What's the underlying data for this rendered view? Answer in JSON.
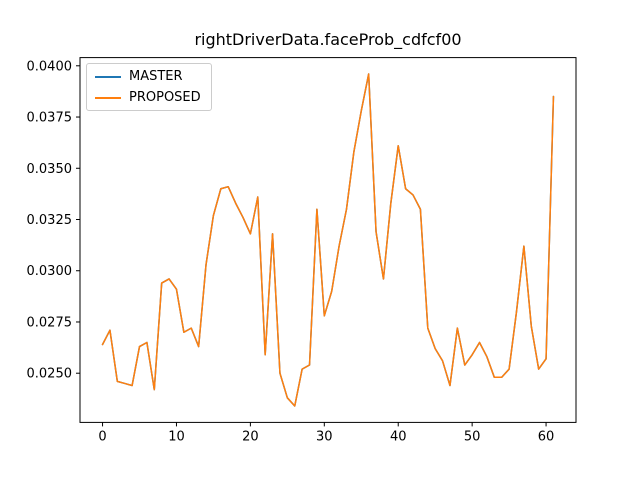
{
  "figure": {
    "background": "#ffffff"
  },
  "chart_data": {
    "type": "line",
    "title": "rightDriverData.faceProb_cdfcf00",
    "xlabel": "",
    "ylabel": "",
    "grid": false,
    "xlim": [
      -3.05,
      64.05
    ],
    "ylim": [
      0.0226,
      0.0404
    ],
    "x_ticks": [
      0,
      10,
      20,
      30,
      40,
      50,
      60
    ],
    "x_tick_labels": [
      "0",
      "10",
      "20",
      "30",
      "40",
      "50",
      "60"
    ],
    "y_ticks": [
      0.025,
      0.0275,
      0.03,
      0.0325,
      0.035,
      0.0375,
      0.04
    ],
    "y_tick_labels": [
      "0.0250",
      "0.0275",
      "0.0300",
      "0.0325",
      "0.0350",
      "0.0375",
      "0.0400"
    ],
    "legend": {
      "position": "upper-left",
      "entries": [
        {
          "label": "MASTER",
          "color": "#1f77b4"
        },
        {
          "label": "PROPOSED",
          "color": "#ff7f0e"
        }
      ]
    },
    "x": [
      0,
      1,
      2,
      3,
      4,
      5,
      6,
      7,
      8,
      9,
      10,
      11,
      12,
      13,
      14,
      15,
      16,
      17,
      18,
      19,
      20,
      21,
      22,
      23,
      24,
      25,
      26,
      27,
      28,
      29,
      30,
      31,
      32,
      33,
      34,
      35,
      36,
      37,
      38,
      39,
      40,
      41,
      42,
      43,
      44,
      45,
      46,
      47,
      48,
      49,
      50,
      51,
      52,
      53,
      54,
      55,
      56,
      57,
      58,
      59,
      60,
      61
    ],
    "series": [
      {
        "name": "MASTER",
        "color": "#1f77b4",
        "values": [
          0.0264,
          0.0271,
          0.0246,
          0.0245,
          0.0244,
          0.0263,
          0.0265,
          0.0242,
          0.0294,
          0.0296,
          0.0291,
          0.027,
          0.0272,
          0.0263,
          0.0303,
          0.0327,
          0.034,
          0.0341,
          0.0333,
          0.0326,
          0.0318,
          0.0336,
          0.0259,
          0.0318,
          0.025,
          0.0238,
          0.0234,
          0.0252,
          0.0254,
          0.033,
          0.0278,
          0.029,
          0.0312,
          0.033,
          0.0358,
          0.0378,
          0.0396,
          0.0319,
          0.0296,
          0.0333,
          0.0361,
          0.034,
          0.0337,
          0.033,
          0.0272,
          0.0262,
          0.0256,
          0.0244,
          0.0272,
          0.0254,
          0.0259,
          0.0265,
          0.0258,
          0.0248,
          0.0248,
          0.0252,
          0.028,
          0.0312,
          0.0273,
          0.0252,
          0.0257,
          0.0385
        ]
      },
      {
        "name": "PROPOSED",
        "color": "#ff7f0e",
        "values": [
          0.0264,
          0.0271,
          0.0246,
          0.0245,
          0.0244,
          0.0263,
          0.0265,
          0.0242,
          0.0294,
          0.0296,
          0.0291,
          0.027,
          0.0272,
          0.0263,
          0.0303,
          0.0327,
          0.034,
          0.0341,
          0.0333,
          0.0326,
          0.0318,
          0.0336,
          0.0259,
          0.0318,
          0.025,
          0.0238,
          0.0234,
          0.0252,
          0.0254,
          0.033,
          0.0278,
          0.029,
          0.0312,
          0.033,
          0.0358,
          0.0378,
          0.0396,
          0.0319,
          0.0296,
          0.0333,
          0.0361,
          0.034,
          0.0337,
          0.033,
          0.0272,
          0.0262,
          0.0256,
          0.0244,
          0.0272,
          0.0254,
          0.0259,
          0.0265,
          0.0258,
          0.0248,
          0.0248,
          0.0252,
          0.028,
          0.0312,
          0.0273,
          0.0252,
          0.0257,
          0.0385
        ]
      }
    ]
  }
}
